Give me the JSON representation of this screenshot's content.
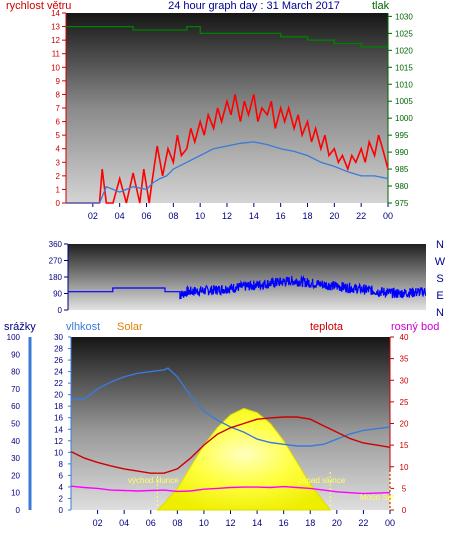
{
  "chart_data": [
    {
      "id": "wind",
      "type": "line",
      "title": "24 hour graph day : 31 March 2017",
      "left_axis_label": "rychlost větru",
      "right_axis_label": "tlak",
      "x_ticks": [
        "02",
        "04",
        "06",
        "08",
        "10",
        "12",
        "14",
        "16",
        "18",
        "20",
        "22",
        "00"
      ],
      "left_ticks": [
        "0",
        "1",
        "2",
        "3",
        "4",
        "5",
        "6",
        "7",
        "8",
        "9",
        "10",
        "11",
        "12",
        "13",
        "14"
      ],
      "right_ticks": [
        "975",
        "980",
        "985",
        "990",
        "995",
        "1000",
        "1005",
        "1010",
        "1015",
        "1020",
        "1025",
        "1030"
      ],
      "ylim_left": [
        0,
        14
      ],
      "ylim_right": [
        975,
        1031
      ],
      "xlim_hours": [
        0,
        24
      ],
      "series": [
        {
          "role": "gust",
          "color": "#ff0000",
          "axis": "left",
          "x": [
            0,
            2.5,
            2.7,
            3.0,
            3.5,
            4.0,
            4.5,
            5.0,
            5.5,
            5.8,
            6.2,
            6.4,
            6.8,
            7.2,
            7.6,
            8.0,
            8.3,
            8.6,
            9.0,
            9.3,
            9.6,
            10.0,
            10.3,
            10.6,
            11.0,
            11.3,
            11.6,
            12.0,
            12.3,
            12.6,
            13.0,
            13.3,
            13.6,
            14.0,
            14.3,
            14.6,
            15.0,
            15.3,
            15.6,
            16.0,
            16.3,
            16.6,
            17.0,
            17.3,
            17.6,
            18.0,
            18.3,
            18.6,
            19.0,
            19.3,
            19.6,
            20.0,
            20.3,
            20.6,
            21.0,
            21.3,
            21.6,
            22.0,
            22.3,
            22.6,
            23.0,
            23.3,
            23.6,
            24.0
          ],
          "values": [
            0,
            0,
            2.5,
            0,
            0,
            1.8,
            0,
            2.2,
            0,
            2.5,
            0,
            1.5,
            4.2,
            2.0,
            4.0,
            3.0,
            5.0,
            3.5,
            4.0,
            5.5,
            4.5,
            6.0,
            5.0,
            6.5,
            5.5,
            7.0,
            6.0,
            7.5,
            6.5,
            8.0,
            6.0,
            7.5,
            6.5,
            8.0,
            6.0,
            7.0,
            6.5,
            7.5,
            5.5,
            7.0,
            6.0,
            7.0,
            5.5,
            6.5,
            5.0,
            6.0,
            4.5,
            5.5,
            4.0,
            5.0,
            3.5,
            4.0,
            3.0,
            3.5,
            2.5,
            3.5,
            3.0,
            4.0,
            3.0,
            4.5,
            3.5,
            5.0,
            4.0,
            2.5
          ]
        },
        {
          "role": "average",
          "color": "#3a7ad8",
          "axis": "left",
          "x": [
            0,
            2.5,
            3.0,
            4.0,
            5.0,
            6.0,
            6.5,
            7.0,
            7.5,
            8.0,
            9.0,
            10.0,
            11.0,
            12.0,
            13.0,
            14.0,
            15.0,
            16.0,
            17.0,
            18.0,
            19.0,
            20.0,
            21.0,
            22.0,
            23.0,
            24.0
          ],
          "values": [
            0,
            0,
            1.2,
            0.8,
            1.2,
            1.0,
            1.5,
            1.8,
            2.0,
            2.5,
            3.0,
            3.5,
            4.0,
            4.2,
            4.4,
            4.5,
            4.3,
            4.0,
            3.8,
            3.5,
            3.0,
            2.7,
            2.3,
            2.0,
            2.0,
            1.8
          ]
        },
        {
          "role": "pressure",
          "color": "#008000",
          "axis": "right",
          "x": [
            0,
            5.0,
            5.0,
            9.0,
            9.0,
            10.0,
            10.0,
            16.0,
            16.0,
            18.0,
            18.0,
            20.0,
            20.0,
            22.0,
            22.0,
            24.0
          ],
          "values": [
            1027,
            1027,
            1026,
            1026,
            1027,
            1027,
            1025,
            1025,
            1024,
            1024,
            1023,
            1023,
            1022,
            1022,
            1021,
            1021
          ]
        }
      ]
    },
    {
      "id": "direction",
      "type": "line",
      "left_ticks": [
        "0",
        "90",
        "180",
        "270",
        "360"
      ],
      "right_labels": [
        "N",
        "W",
        "S",
        "E",
        "N"
      ],
      "ylim": [
        0,
        360
      ],
      "xlim_hours": [
        0,
        24
      ],
      "series": [
        {
          "role": "direction",
          "color": "#0000ff",
          "x": [
            0,
            3.0,
            3.0,
            6.5,
            6.5,
            7.5,
            7.5,
            8.0,
            10.0,
            12.0,
            14.0,
            15.0,
            16.0,
            18.0,
            20.0,
            22.0,
            24.0
          ],
          "values": [
            100,
            100,
            120,
            120,
            100,
            100,
            80,
            100,
            110,
            130,
            150,
            160,
            150,
            130,
            110,
            90,
            100
          ]
        }
      ]
    },
    {
      "id": "weather",
      "type": "line",
      "header_labels": {
        "rain": "srážky",
        "humidity": "vlhkost",
        "solar": "Solar",
        "temp": "teplota",
        "dew": "rosný bod"
      },
      "annotations": {
        "sunrise": "východ slunce",
        "sunset": "západ slunce",
        "moon": "Moon Set"
      },
      "x_ticks": [
        "02",
        "04",
        "06",
        "08",
        "10",
        "12",
        "14",
        "16",
        "18",
        "20",
        "22",
        "00"
      ],
      "rain_ticks": [
        "0",
        "10",
        "20",
        "30",
        "40",
        "50",
        "60",
        "70",
        "80",
        "90",
        "100"
      ],
      "humidity_ticks": [
        "0",
        "2",
        "4",
        "6",
        "8",
        "10",
        "12",
        "14",
        "16",
        "18",
        "20",
        "22",
        "24",
        "26",
        "28",
        "30"
      ],
      "temp_ticks": [
        "0",
        "5",
        "10",
        "15",
        "20",
        "25",
        "30",
        "35",
        "40"
      ],
      "ylim_rain": [
        0,
        100
      ],
      "ylim_temp": [
        0,
        40
      ],
      "xlim_hours": [
        0,
        24
      ],
      "events_hours": {
        "sunrise": 6.5,
        "sunset": 19.5,
        "moon_set": 24.0
      },
      "series": [
        {
          "role": "humidity",
          "color": "#3a7ad8",
          "axis": "rain",
          "x": [
            0,
            1,
            2,
            3,
            4,
            5,
            6,
            7,
            7.3,
            8,
            9,
            10,
            11,
            12,
            13,
            14,
            15,
            16,
            17,
            18,
            19,
            20,
            21,
            22,
            23,
            24
          ],
          "values": [
            64,
            64,
            70,
            74,
            77,
            79,
            80,
            81,
            82,
            77,
            66,
            57,
            52,
            48,
            45,
            41,
            39,
            38,
            37,
            37,
            38,
            41,
            44,
            46,
            47,
            48
          ]
        },
        {
          "role": "temperature",
          "color": "#cc0000",
          "axis": "temp",
          "x": [
            0,
            1,
            2,
            3,
            4,
            5,
            6,
            7,
            8,
            9,
            10,
            11,
            12,
            13,
            14,
            15,
            16,
            17,
            18,
            19,
            20,
            21,
            22,
            23,
            24
          ],
          "values": [
            13.5,
            12,
            11,
            10.2,
            9.5,
            9,
            8.5,
            8.5,
            9.5,
            12,
            15,
            17.5,
            19,
            20,
            21,
            21.3,
            21.5,
            21.5,
            21,
            19.5,
            18,
            16.5,
            15.5,
            15,
            14.5
          ]
        },
        {
          "role": "dew_point",
          "color": "#ff00ff",
          "axis": "temp",
          "x": [
            0,
            1,
            2,
            3,
            4,
            5,
            6,
            7,
            8,
            9,
            10,
            11,
            12,
            13,
            14,
            15,
            16,
            17,
            18,
            19,
            20,
            21,
            22,
            23,
            24
          ],
          "values": [
            5.5,
            5.2,
            5,
            4.6,
            4.5,
            4.4,
            4.5,
            4.6,
            4.3,
            4.4,
            4.8,
            5,
            5.2,
            5.3,
            5.3,
            5.2,
            5.4,
            5.2,
            5,
            4.6,
            4.2,
            4,
            3.8,
            3.9,
            4.0
          ]
        },
        {
          "role": "solar",
          "color": "#ffff00",
          "axis": "temp",
          "x": [
            6.5,
            7,
            8,
            9,
            10,
            11,
            12,
            13,
            14,
            15,
            16,
            17,
            18,
            19,
            19.5
          ],
          "values": [
            0,
            1.5,
            5,
            10,
            15,
            19,
            22,
            23.5,
            22.5,
            20,
            16,
            11,
            6,
            2,
            0
          ]
        }
      ]
    }
  ]
}
